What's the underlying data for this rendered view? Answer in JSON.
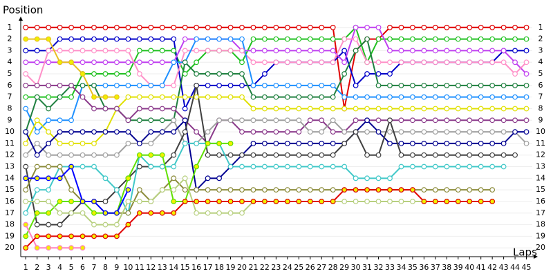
{
  "chart_data": {
    "type": "lap",
    "y_label": "Position",
    "x_label": "Laps",
    "x": [
      1,
      2,
      3,
      4,
      5,
      6,
      7,
      8,
      9,
      10,
      11,
      12,
      13,
      14,
      15,
      16,
      17,
      18,
      19,
      20,
      21,
      22,
      23,
      24,
      25,
      26,
      27,
      28,
      29,
      30,
      31,
      32,
      33,
      34,
      35,
      36,
      37,
      38,
      39,
      40,
      41,
      42,
      43,
      44,
      45
    ],
    "xlim": [
      0.5,
      46
    ],
    "xticks": [
      1,
      2,
      3,
      4,
      5,
      6,
      7,
      8,
      9,
      10,
      11,
      12,
      13,
      14,
      15,
      16,
      17,
      18,
      19,
      20,
      21,
      22,
      23,
      24,
      25,
      26,
      27,
      28,
      29,
      30,
      31,
      32,
      33,
      34,
      35,
      36,
      37,
      38,
      39,
      40,
      41,
      42,
      43,
      44,
      45
    ],
    "ylim": [
      0,
      21
    ],
    "y_inverted": true,
    "yticks": [
      1,
      2,
      3,
      4,
      5,
      6,
      7,
      8,
      9,
      10,
      11,
      12,
      13,
      14,
      15,
      16,
      17,
      18,
      19,
      20
    ],
    "y2lim": [
      0,
      21
    ],
    "y2ticks": [
      1,
      2,
      3,
      4,
      5,
      6,
      7,
      8,
      9,
      10,
      11,
      12,
      13,
      14,
      15,
      16,
      17,
      18,
      19,
      20
    ],
    "grid": true,
    "series": [
      {
        "color": "#e00000",
        "values": [
          1,
          1,
          1,
          1,
          1,
          1,
          1,
          1,
          1,
          1,
          1,
          1,
          1,
          1,
          1,
          1,
          1,
          1,
          1,
          1,
          1,
          1,
          1,
          1,
          1,
          1,
          1,
          1,
          8,
          3,
          2,
          2,
          1,
          1,
          1,
          1,
          1,
          1,
          1,
          1,
          1,
          1,
          1,
          1,
          1
        ]
      },
      {
        "color": "#20c020",
        "values": [
          7,
          7,
          7,
          7,
          7,
          5,
          5,
          5,
          5,
          5,
          3,
          3,
          3,
          3,
          5,
          4,
          3,
          3,
          3,
          4,
          2,
          2,
          2,
          2,
          2,
          2,
          2,
          2,
          2,
          1,
          4,
          2,
          2,
          2,
          2,
          2,
          2,
          2,
          2,
          2,
          2,
          2,
          2,
          2,
          2
        ]
      },
      {
        "color": "#0000c8",
        "values": [
          3,
          3,
          3,
          2,
          2,
          2,
          2,
          2,
          2,
          2,
          2,
          2,
          2,
          2,
          8,
          6,
          6,
          6,
          6,
          6,
          6,
          5,
          4,
          4,
          4,
          4,
          4,
          4,
          3,
          6,
          5,
          5,
          5,
          4,
          4,
          4,
          4,
          4,
          4,
          4,
          4,
          4,
          3,
          3,
          3
        ]
      },
      {
        "color": "#c040f0",
        "values": [
          4,
          4,
          4,
          4,
          4,
          4,
          4,
          4,
          4,
          4,
          4,
          4,
          4,
          4,
          2,
          2,
          2,
          2,
          2,
          3,
          3,
          3,
          3,
          3,
          3,
          3,
          3,
          3,
          4,
          1,
          1,
          1,
          3,
          3,
          3,
          3,
          3,
          3,
          3,
          3,
          3,
          3,
          3,
          4,
          5
        ]
      },
      {
        "color": "#ff90c8",
        "values": [
          5,
          6,
          3,
          3,
          3,
          3,
          3,
          3,
          3,
          3,
          5,
          6,
          6,
          6,
          3,
          3,
          3,
          3,
          3,
          3,
          4,
          4,
          4,
          4,
          4,
          4,
          4,
          4,
          2,
          2,
          4,
          4,
          4,
          4,
          4,
          4,
          4,
          4,
          4,
          4,
          4,
          4,
          4,
          5,
          4
        ]
      },
      {
        "color": "#1e90ff",
        "values": [
          8,
          10,
          9,
          9,
          9,
          6,
          6,
          6,
          6,
          6,
          6,
          6,
          6,
          4,
          4,
          2,
          2,
          2,
          2,
          2,
          6,
          6,
          6,
          6,
          6,
          6,
          6,
          6,
          7,
          7,
          7,
          7,
          7,
          7,
          7,
          7,
          7,
          7,
          7,
          7,
          7,
          7,
          7,
          7,
          7
        ]
      },
      {
        "color": "#208040",
        "values": [
          10,
          7,
          8,
          7,
          6,
          6,
          6,
          8,
          8,
          9,
          9,
          9,
          9,
          9,
          4,
          5,
          5,
          5,
          5,
          5,
          7,
          7,
          7,
          7,
          7,
          7,
          7,
          7,
          5,
          3,
          2,
          6,
          6,
          6,
          6,
          6,
          6,
          6,
          6,
          6,
          6,
          6,
          6,
          6,
          6
        ]
      },
      {
        "color": "#e0e000",
        "values": [
          11,
          9,
          10,
          11,
          11,
          11,
          11,
          10,
          8,
          7,
          7,
          7,
          7,
          7,
          7,
          7,
          7,
          7,
          7,
          7,
          8,
          8,
          8,
          8,
          8,
          8,
          8,
          8,
          8,
          8,
          8,
          8,
          8,
          8,
          8,
          8,
          8,
          8,
          8,
          8,
          8,
          8,
          8,
          8,
          8
        ]
      },
      {
        "color": "#8b3a8b",
        "values": [
          6,
          6,
          6,
          6,
          6,
          7,
          8,
          8,
          8,
          9,
          8,
          8,
          8,
          8,
          9,
          10,
          11,
          9,
          9,
          10,
          10,
          10,
          10,
          10,
          10,
          9,
          9,
          10,
          10,
          9,
          9,
          9,
          9,
          9,
          9,
          9,
          9,
          9,
          9,
          9,
          9,
          9,
          9,
          9,
          9
        ]
      },
      {
        "color": "#a0a0a0",
        "values": [
          12,
          11,
          12,
          12,
          12,
          12,
          12,
          12,
          12,
          11,
          11,
          11,
          10,
          9,
          11,
          11,
          10,
          9,
          9,
          9,
          9,
          9,
          9,
          9,
          9,
          10,
          10,
          9,
          10,
          10,
          10,
          10,
          10,
          10,
          10,
          10,
          10,
          10,
          10,
          10,
          10,
          10,
          10,
          10,
          11
        ]
      },
      {
        "color": "#000090",
        "values": [
          10,
          12,
          11,
          10,
          10,
          10,
          10,
          10,
          10,
          10,
          11,
          10,
          10,
          10,
          9,
          15,
          14,
          14,
          13,
          12,
          11,
          11,
          11,
          11,
          11,
          11,
          11,
          11,
          11,
          10,
          9,
          10,
          11,
          11,
          11,
          11,
          11,
          11,
          11,
          11,
          11,
          11,
          11,
          10,
          10
        ]
      },
      {
        "color": "#404040",
        "values": [
          13,
          18,
          18,
          18,
          17,
          16,
          16,
          16,
          15,
          14,
          13,
          13,
          13,
          12,
          10,
          6,
          12,
          12,
          12,
          12,
          12,
          12,
          12,
          12,
          12,
          12,
          12,
          12,
          11,
          10,
          12,
          12,
          9,
          12,
          12,
          12,
          12,
          12,
          12,
          12,
          12,
          12,
          12,
          12,
          null
        ]
      },
      {
        "color": "#40c8c8",
        "values": [
          17,
          15,
          15,
          13,
          13,
          13,
          13,
          14,
          15,
          17,
          12,
          13,
          13,
          13,
          11,
          11,
          11,
          11,
          13,
          13,
          13,
          13,
          13,
          13,
          13,
          13,
          13,
          13,
          13,
          14,
          14,
          14,
          14,
          13,
          13,
          13,
          13,
          13,
          13,
          13,
          13,
          13,
          13,
          null,
          null
        ]
      },
      {
        "color": "#8b8b3a",
        "values": [
          15,
          13,
          13,
          13,
          15,
          16,
          16,
          17,
          17,
          17,
          15,
          16,
          15,
          14,
          15,
          15,
          15,
          15,
          15,
          15,
          15,
          15,
          15,
          15,
          15,
          15,
          15,
          15,
          15,
          15,
          15,
          15,
          15,
          15,
          15,
          15,
          15,
          15,
          15,
          15,
          15,
          15,
          null,
          null,
          null
        ]
      },
      {
        "color": "#60e000",
        "marker_fill": "#f0f000",
        "values": [
          19,
          17,
          17,
          16,
          16,
          16,
          17,
          17,
          17,
          14,
          12,
          12,
          12,
          16,
          16,
          13,
          11,
          11,
          11,
          null,
          null,
          null,
          null,
          null,
          null,
          null,
          null,
          null,
          null,
          null,
          null,
          null,
          null,
          null,
          null,
          null,
          null,
          null,
          null,
          null,
          null,
          null,
          null,
          null,
          null
        ]
      },
      {
        "color": "#b8d080",
        "values": [
          16,
          16,
          16,
          17,
          17,
          17,
          18,
          18,
          18,
          16,
          16,
          16,
          15,
          15,
          14,
          17,
          17,
          17,
          17,
          17,
          16,
          16,
          16,
          16,
          16,
          16,
          16,
          16,
          16,
          16,
          16,
          16,
          16,
          16,
          16,
          16,
          16,
          16,
          16,
          16,
          16,
          16,
          null,
          null,
          null
        ]
      },
      {
        "color": "#e8c020",
        "marker_fill": "#f0f000",
        "values": [
          2,
          2,
          2,
          4,
          4,
          5,
          7,
          7,
          7,
          null,
          null,
          null,
          null,
          null,
          null,
          null,
          null,
          null,
          null,
          null,
          null,
          null,
          null,
          null,
          null,
          null,
          null,
          null,
          null,
          null,
          null,
          null,
          null,
          null,
          null,
          null,
          null,
          null,
          null,
          null,
          null,
          null,
          null,
          null,
          null
        ]
      },
      {
        "color": "#ff80c0",
        "marker_fill": "#f0f000",
        "values": [
          18,
          20,
          20,
          20,
          20,
          20,
          null,
          null,
          null,
          null,
          null,
          null,
          null,
          null,
          null,
          null,
          null,
          null,
          null,
          null,
          null,
          null,
          null,
          null,
          null,
          null,
          null,
          null,
          null,
          null,
          null,
          null,
          null,
          null,
          null,
          null,
          null,
          null,
          null,
          null,
          null,
          null,
          null,
          null,
          null
        ]
      },
      {
        "color": "#0000ff",
        "marker_fill": "#f0f000",
        "values": [
          14,
          14,
          14,
          14,
          13,
          16,
          16,
          17,
          17,
          15,
          null,
          null,
          null,
          null,
          null,
          null,
          null,
          null,
          null,
          null,
          null,
          null,
          null,
          null,
          null,
          null,
          null,
          null,
          null,
          null,
          null,
          null,
          null,
          null,
          null,
          null,
          null,
          null,
          null,
          null,
          null,
          null,
          null,
          null,
          null
        ]
      },
      {
        "color": "#e00000",
        "marker_fill": "#f0f000",
        "values": [
          20,
          19,
          19,
          19,
          19,
          19,
          19,
          19,
          19,
          18,
          17,
          17,
          17,
          17,
          16,
          16,
          16,
          16,
          16,
          16,
          16,
          16,
          16,
          16,
          16,
          16,
          16,
          16,
          15,
          15,
          15,
          15,
          15,
          15,
          15,
          16,
          16,
          16,
          16,
          16,
          16,
          16,
          null,
          null,
          null
        ]
      }
    ]
  }
}
